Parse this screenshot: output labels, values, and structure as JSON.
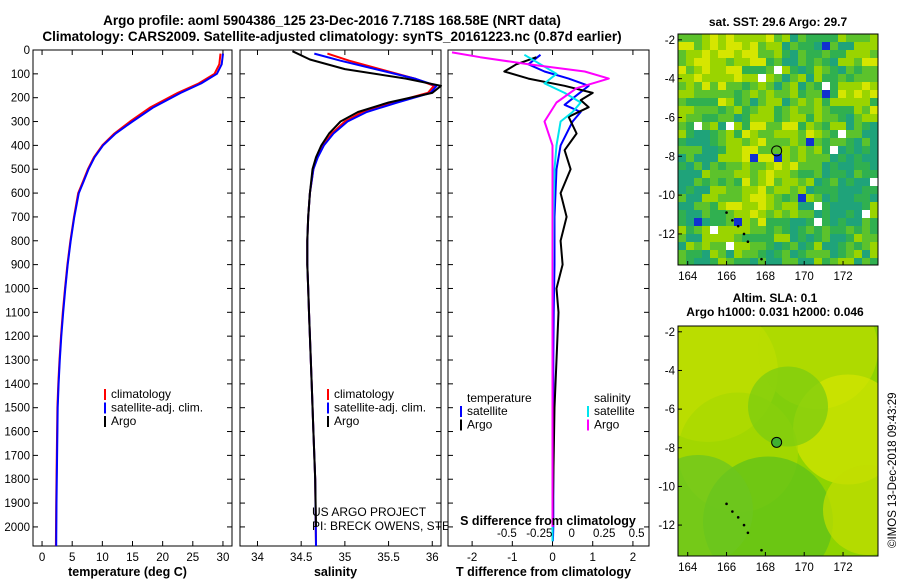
{
  "title_line1": "Argo profile: aoml 5904386_125 23-Dec-2016 7.718S 168.58E (NRT data)",
  "title_line2": "Climatology: CARS2009. Satellite-adjusted climatology: synTS_20161223.nc (0.87d earlier)",
  "colors": {
    "climatology": "#ff0000",
    "satellite": "#0000ff",
    "argo": "#000000",
    "salinity_satellite": "#00e5ee",
    "salinity_argo": "#ff00ff"
  },
  "chart_data": [
    {
      "type": "line",
      "name": "temperature_profile",
      "xlabel": "temperature (deg C)",
      "xlim": [
        -1.5,
        31.5
      ],
      "xticks": [
        0,
        5,
        10,
        15,
        20,
        25,
        30
      ],
      "xtick_labels": [
        "0",
        "5",
        "10",
        "15",
        "20",
        "25",
        "30"
      ],
      "ylim": [
        2080,
        0
      ],
      "yticks": [
        0,
        100,
        200,
        300,
        400,
        500,
        600,
        700,
        800,
        900,
        1000,
        1100,
        1200,
        1300,
        1400,
        1500,
        1600,
        1700,
        1800,
        1900,
        2000
      ],
      "ytick_labels": [
        "0",
        "100",
        "200",
        "300",
        "400",
        "500",
        "600",
        "700",
        "800",
        "900",
        "1000",
        "1100",
        "1200",
        "1300",
        "1400",
        "1500",
        "1600",
        "1700",
        "1800",
        "1900",
        "2000"
      ],
      "legend": [
        "climatology",
        "satellite-adj. clim.",
        "Argo"
      ],
      "series": [
        {
          "name": "climatology",
          "color": "#ff0000",
          "x": [
            29.6,
            29.4,
            28.6,
            26.0,
            22.5,
            18.0,
            14.6,
            12.0,
            10.0,
            8.6,
            7.6,
            6.8,
            6.0,
            5.3,
            4.7,
            4.2,
            3.8,
            3.45,
            3.15,
            2.9,
            2.7,
            2.55,
            2.45,
            2.35,
            2.3
          ],
          "y": [
            15,
            60,
            100,
            140,
            180,
            240,
            300,
            350,
            400,
            450,
            500,
            550,
            600,
            700,
            800,
            900,
            1000,
            1100,
            1200,
            1300,
            1400,
            1500,
            1700,
            1900,
            2080
          ]
        },
        {
          "name": "satellite-adj. clim.",
          "color": "#0000ff",
          "x": [
            30.0,
            29.8,
            29.0,
            26.4,
            23.0,
            18.5,
            15.0,
            12.2,
            10.1,
            8.7,
            7.7,
            6.9,
            6.1,
            5.35,
            4.75,
            4.25,
            3.85,
            3.5,
            3.2,
            2.95,
            2.75,
            2.6,
            2.5,
            2.4,
            2.35
          ],
          "y": [
            15,
            60,
            100,
            140,
            180,
            240,
            300,
            350,
            400,
            450,
            500,
            550,
            600,
            700,
            800,
            900,
            1000,
            1100,
            1200,
            1300,
            1400,
            1500,
            1700,
            1900,
            2080
          ]
        }
      ]
    },
    {
      "type": "line",
      "name": "salinity_profile",
      "xlabel": "salinity",
      "xlim": [
        33.8,
        36.1
      ],
      "xticks": [
        34,
        34.5,
        35,
        35.5,
        36
      ],
      "xtick_labels": [
        "34",
        "34.5",
        "35",
        "35.5",
        "36"
      ],
      "ylim": [
        2080,
        0
      ],
      "legend": [
        "climatology",
        "satellite-adj. clim.",
        "Argo"
      ],
      "series": [
        {
          "name": "climatology",
          "color": "#ff0000",
          "x": [
            34.8,
            35.05,
            35.4,
            35.8,
            36.02,
            35.95,
            35.55,
            35.2,
            35.0,
            34.85,
            34.75,
            34.68,
            34.64,
            34.6,
            34.58,
            34.57,
            34.57,
            34.58,
            34.59,
            34.6,
            34.61,
            34.62,
            34.64,
            34.66,
            34.67
          ],
          "y": [
            15,
            45,
            80,
            120,
            150,
            180,
            220,
            260,
            300,
            350,
            400,
            450,
            500,
            600,
            700,
            800,
            900,
            1000,
            1100,
            1200,
            1300,
            1400,
            1600,
            1800,
            2080
          ]
        },
        {
          "name": "satellite-adj. clim.",
          "color": "#0000ff",
          "x": [
            34.65,
            34.95,
            35.35,
            35.8,
            36.05,
            35.98,
            35.6,
            35.25,
            35.03,
            34.87,
            34.76,
            34.69,
            34.64,
            34.6,
            34.58,
            34.57,
            34.57,
            34.58,
            34.59,
            34.6,
            34.61,
            34.62,
            34.64,
            34.66,
            34.67
          ],
          "y": [
            15,
            45,
            80,
            120,
            150,
            180,
            220,
            260,
            300,
            350,
            400,
            450,
            500,
            600,
            700,
            800,
            900,
            1000,
            1100,
            1200,
            1300,
            1400,
            1600,
            1800,
            2080
          ]
        },
        {
          "name": "Argo",
          "color": "#000000",
          "x": [
            34.4,
            34.6,
            35.0,
            35.7,
            36.1,
            36.0,
            35.5,
            35.15,
            34.95,
            34.82,
            34.73,
            34.67,
            34.63,
            34.6,
            34.58,
            34.57,
            34.57,
            34.58,
            34.59,
            34.6,
            34.61,
            34.62,
            34.64,
            34.66,
            34.67
          ],
          "y": [
            5,
            40,
            80,
            120,
            150,
            180,
            220,
            260,
            300,
            350,
            400,
            450,
            500,
            600,
            700,
            800,
            900,
            1000,
            1100,
            1200,
            1300,
            1400,
            1600,
            1800,
            2000
          ]
        }
      ]
    },
    {
      "type": "line",
      "name": "difference_profile",
      "xlabel": "T difference from climatology",
      "xlabel_top": "S difference from climatology",
      "xlim": [
        -2.6,
        2.4
      ],
      "xticks": [
        -2,
        -1,
        0,
        1,
        2
      ],
      "xtick_labels": [
        "-2",
        "-1",
        "0",
        "1",
        "2"
      ],
      "s_xticks": [
        -0.5,
        -0.25,
        0,
        0.25,
        0.5
      ],
      "s_xtick_labels": [
        "-0.5",
        "-0.25",
        "0",
        "0.25",
        "0.5"
      ],
      "ylim": [
        2080,
        0
      ],
      "legend_left_title": "temperature",
      "legend_left": [
        "satellite",
        "Argo"
      ],
      "legend_right_title": "salinity",
      "legend_right": [
        "satellite",
        "Argo"
      ],
      "series": [
        {
          "name": "T satellite",
          "color": "#0000ff",
          "x": [
            -0.3,
            -0.6,
            -0.2,
            0.4,
            0.9,
            0.6,
            0.3,
            0.7,
            0.5,
            0.2,
            0.1,
            0.05,
            0.05,
            0.03,
            0.02,
            0.02,
            0.02,
            0.02,
            0.02,
            0.01
          ],
          "y": [
            20,
            60,
            90,
            120,
            150,
            190,
            230,
            260,
            300,
            400,
            500,
            700,
            900,
            1100,
            1300,
            1500,
            1700,
            1900,
            2000,
            2060
          ]
        },
        {
          "name": "T Argo",
          "color": "#000000",
          "x": [
            -0.4,
            -0.9,
            -1.2,
            -0.6,
            0.3,
            1.0,
            0.7,
            0.9,
            0.4,
            0.6,
            0.3,
            0.45,
            0.2,
            0.35,
            0.2,
            0.25,
            0.1,
            0.15,
            0.1,
            0.05,
            0.0
          ],
          "y": [
            30,
            60,
            90,
            120,
            150,
            180,
            210,
            240,
            280,
            350,
            420,
            500,
            600,
            700,
            800,
            900,
            1000,
            1100,
            1300,
            1500,
            2000
          ]
        },
        {
          "name": "S satellite",
          "color": "#00e5ee",
          "x": [
            -0.7,
            -0.3,
            0.1,
            -0.2,
            0.3,
            0.7,
            0.5,
            0.2,
            0.1,
            0.05,
            0.02,
            0.01,
            0.0,
            0.0,
            0.0,
            0.0,
            0.0
          ],
          "y": [
            20,
            60,
            100,
            140,
            180,
            220,
            260,
            300,
            400,
            500,
            700,
            900,
            1100,
            1300,
            1500,
            1800,
            2060
          ]
        },
        {
          "name": "S Argo",
          "color": "#ff00ff",
          "x": [
            -2.5,
            -1.8,
            -0.6,
            0.8,
            1.4,
            0.6,
            0.1,
            -0.2,
            0.0,
            0.0,
            0.0,
            0.0
          ],
          "y": [
            10,
            30,
            60,
            90,
            120,
            160,
            220,
            300,
            400,
            600,
            1000,
            2000
          ]
        }
      ]
    }
  ],
  "maps": [
    {
      "name": "sst_map",
      "title": "sat. SST: 29.6 Argo: 29.7",
      "xticks": [
        164,
        166,
        168,
        170,
        172
      ],
      "xtick_labels": [
        "164",
        "166",
        "168",
        "170",
        "172"
      ],
      "yticks": [
        -2,
        -4,
        -6,
        -8,
        -10,
        -12
      ],
      "ytick_labels": [
        "-2",
        "-4",
        "-6",
        "-8",
        "-10",
        "-12"
      ],
      "xlim": [
        163.5,
        173.8
      ],
      "ylim": [
        -13.6,
        -1.7
      ],
      "argo_position": [
        168.58,
        -7.718
      ]
    },
    {
      "name": "sla_map",
      "title_line1": "Altim. SLA: 0.1",
      "title_line2": "Argo h1000: 0.031 h2000: 0.046",
      "xticks": [
        164,
        166,
        168,
        170,
        172
      ],
      "xtick_labels": [
        "164",
        "166",
        "168",
        "170",
        "172"
      ],
      "yticks": [
        -2,
        -4,
        -6,
        -8,
        -10,
        -12
      ],
      "ytick_labels": [
        "-2",
        "-4",
        "-6",
        "-8",
        "-10",
        "-12"
      ],
      "xlim": [
        163.5,
        173.8
      ],
      "ylim": [
        -13.6,
        -1.7
      ],
      "argo_position": [
        168.58,
        -7.718
      ]
    }
  ],
  "credit_line1": "US ARGO PROJECT",
  "credit_line2": "PI: BRECK OWENS, STEVE JAYNE, P.E. ROBBINS",
  "watermark": "©IMOS 13-Dec-2018 09:43:29"
}
